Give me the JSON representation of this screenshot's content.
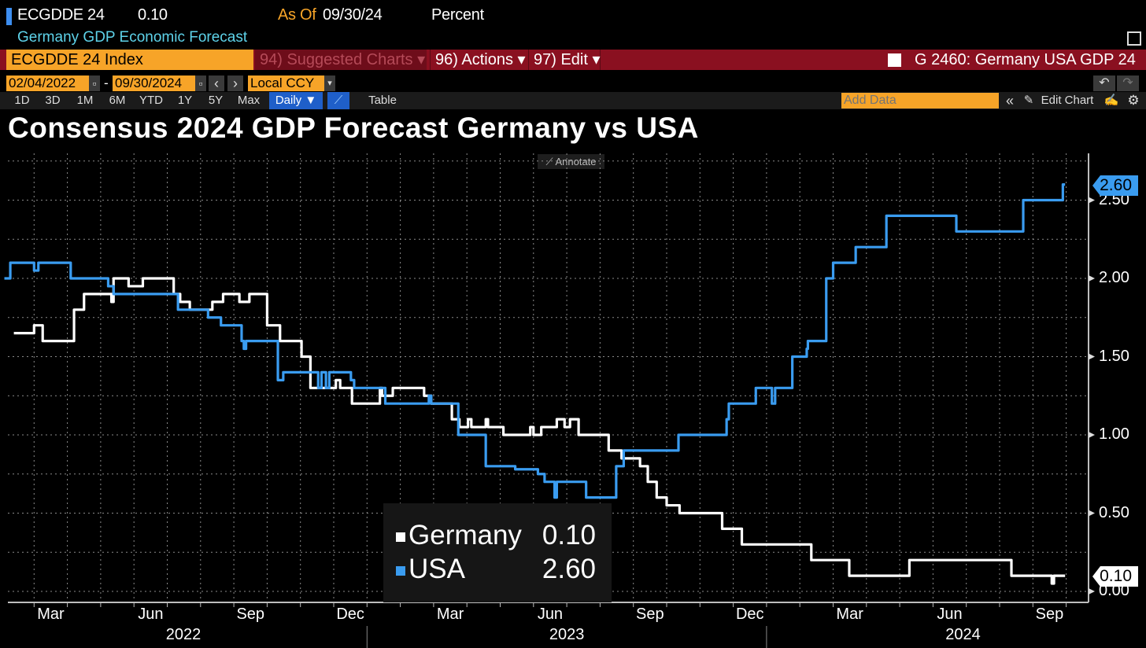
{
  "header": {
    "ticker": "ECGDDE 24",
    "value": "0.10",
    "as_of_label": "As Of",
    "as_of_date": "09/30/24",
    "units": "Percent",
    "description": "Germany GDP Economic Forecast"
  },
  "security_bar": {
    "security_input": "ECGDDE 24 Index",
    "suggested_charts": "94) Suggested Charts ▾",
    "actions": "96) Actions ▾",
    "edit": "97) Edit ▾",
    "chart_name": "G 2460: Germany USA GDP 24"
  },
  "date_bar": {
    "start_date": "02/04/2022",
    "separator": "-",
    "end_date": "09/30/2024",
    "currency": "Local CCY",
    "prev": "‹",
    "next": "›",
    "dropdown": "▾",
    "undo": "↶",
    "redo": "↷"
  },
  "toolbar": {
    "ranges": [
      "1D",
      "3D",
      "1M",
      "6M",
      "YTD",
      "1Y",
      "5Y",
      "Max"
    ],
    "frequency": "Daily ▼",
    "table": "Table",
    "add_data_placeholder": "Add Data",
    "collapse": "«",
    "edit_chart": "Edit Chart"
  },
  "annotate_label": "Annotate",
  "colors": {
    "accent_orange": "#f7a428",
    "bar_red": "#8a1020",
    "usa": "#3a9cf0",
    "germany": "#ffffff",
    "active_blue": "#1f5fc9"
  },
  "chart_data": {
    "type": "line",
    "title": "Consensus 2024 GDP Forecast Germany vs USA",
    "xlabel": "",
    "ylabel": "Percent",
    "xlim": [
      "2022-02-04",
      "2024-09-30"
    ],
    "ylim": [
      -0.07,
      2.8
    ],
    "grid": true,
    "legend": "bottom-center",
    "y_ticks": [
      "2.50",
      "2.00",
      "1.50",
      "1.00",
      "0.50",
      "0.00"
    ],
    "x_month_labels": [
      {
        "label": "Mar",
        "date": "2022-03-01"
      },
      {
        "label": "Jun",
        "date": "2022-06-01"
      },
      {
        "label": "Sep",
        "date": "2022-09-01"
      },
      {
        "label": "Dec",
        "date": "2022-12-01"
      },
      {
        "label": "Mar",
        "date": "2023-03-01"
      },
      {
        "label": "Jun",
        "date": "2023-06-01"
      },
      {
        "label": "Sep",
        "date": "2023-09-01"
      },
      {
        "label": "Dec",
        "date": "2023-12-01"
      },
      {
        "label": "Mar",
        "date": "2024-03-01"
      },
      {
        "label": "Jun",
        "date": "2024-06-01"
      },
      {
        "label": "Sep",
        "date": "2024-09-01"
      }
    ],
    "x_year_labels": [
      {
        "label": "2022",
        "date": "2022-07-16"
      },
      {
        "label": "2023",
        "date": "2023-07-01"
      },
      {
        "label": "2024",
        "date": "2024-06-28"
      }
    ],
    "series": [
      {
        "name": "Germany",
        "last": "0.10",
        "color": "#ffffff",
        "points": [
          [
            "2022-02-12",
            1.65
          ],
          [
            "2022-03-01",
            1.7
          ],
          [
            "2022-03-09",
            1.6
          ],
          [
            "2022-04-07",
            1.8
          ],
          [
            "2022-04-16",
            1.9
          ],
          [
            "2022-05-11",
            1.85
          ],
          [
            "2022-05-13",
            2.0
          ],
          [
            "2022-05-27",
            1.95
          ],
          [
            "2022-06-09",
            2.0
          ],
          [
            "2022-07-07",
            1.9
          ],
          [
            "2022-07-13",
            1.85
          ],
          [
            "2022-07-22",
            1.8
          ],
          [
            "2022-08-12",
            1.85
          ],
          [
            "2022-08-22",
            1.9
          ],
          [
            "2022-09-06",
            1.85
          ],
          [
            "2022-09-15",
            1.9
          ],
          [
            "2022-10-01",
            1.7
          ],
          [
            "2022-10-13",
            1.6
          ],
          [
            "2022-11-02",
            1.5
          ],
          [
            "2022-11-10",
            1.3
          ],
          [
            "2022-12-03",
            1.35
          ],
          [
            "2022-12-07",
            1.3
          ],
          [
            "2022-12-18",
            1.2
          ],
          [
            "2023-01-13",
            1.3
          ],
          [
            "2023-01-15",
            1.25
          ],
          [
            "2023-01-25",
            1.3
          ],
          [
            "2023-02-21",
            1.25
          ],
          [
            "2023-02-27",
            1.2
          ],
          [
            "2023-03-18",
            1.1
          ],
          [
            "2023-03-25",
            1.05
          ],
          [
            "2023-04-02",
            1.1
          ],
          [
            "2023-04-05",
            1.05
          ],
          [
            "2023-04-18",
            1.1
          ],
          [
            "2023-04-20",
            1.05
          ],
          [
            "2023-05-04",
            1.0
          ],
          [
            "2023-05-29",
            1.05
          ],
          [
            "2023-06-01",
            1.0
          ],
          [
            "2023-06-08",
            1.05
          ],
          [
            "2023-06-22",
            1.1
          ],
          [
            "2023-06-29",
            1.05
          ],
          [
            "2023-07-04",
            1.1
          ],
          [
            "2023-07-12",
            1.0
          ],
          [
            "2023-08-09",
            0.9
          ],
          [
            "2023-08-21",
            0.85
          ],
          [
            "2023-09-07",
            0.8
          ],
          [
            "2023-09-14",
            0.7
          ],
          [
            "2023-09-22",
            0.6
          ],
          [
            "2023-10-01",
            0.55
          ],
          [
            "2023-10-13",
            0.5
          ],
          [
            "2023-11-21",
            0.4
          ],
          [
            "2023-12-09",
            0.3
          ],
          [
            "2024-02-11",
            0.2
          ],
          [
            "2024-03-16",
            0.1
          ],
          [
            "2024-05-10",
            0.2
          ],
          [
            "2024-08-12",
            0.1
          ],
          [
            "2024-09-18",
            0.05
          ],
          [
            "2024-09-20",
            0.1
          ]
        ]
      },
      {
        "name": "USA",
        "last": "2.60",
        "color": "#3a9cf0",
        "points": [
          [
            "2022-02-04",
            2.0
          ],
          [
            "2022-02-09",
            2.1
          ],
          [
            "2022-03-01",
            2.05
          ],
          [
            "2022-03-05",
            2.1
          ],
          [
            "2022-04-04",
            2.0
          ],
          [
            "2022-05-08",
            1.95
          ],
          [
            "2022-05-13",
            1.9
          ],
          [
            "2022-07-11",
            1.8
          ],
          [
            "2022-08-08",
            1.75
          ],
          [
            "2022-08-20",
            1.7
          ],
          [
            "2022-09-08",
            1.6
          ],
          [
            "2022-09-10",
            1.55
          ],
          [
            "2022-09-12",
            1.6
          ],
          [
            "2022-10-11",
            1.35
          ],
          [
            "2022-10-16",
            1.4
          ],
          [
            "2022-11-17",
            1.3
          ],
          [
            "2022-11-20",
            1.4
          ],
          [
            "2022-11-24",
            1.3
          ],
          [
            "2022-11-27",
            1.4
          ],
          [
            "2022-12-17",
            1.35
          ],
          [
            "2022-12-20",
            1.3
          ],
          [
            "2023-01-18",
            1.2
          ],
          [
            "2023-02-25",
            1.25
          ],
          [
            "2023-02-27",
            1.2
          ],
          [
            "2023-03-24",
            1.0
          ],
          [
            "2023-04-18",
            0.8
          ],
          [
            "2023-05-15",
            0.78
          ],
          [
            "2023-06-05",
            0.75
          ],
          [
            "2023-06-11",
            0.7
          ],
          [
            "2023-06-20",
            0.6
          ],
          [
            "2023-06-22",
            0.7
          ],
          [
            "2023-07-19",
            0.6
          ],
          [
            "2023-08-16",
            0.8
          ],
          [
            "2023-08-23",
            0.9
          ],
          [
            "2023-10-12",
            1.0
          ],
          [
            "2023-11-25",
            1.1
          ],
          [
            "2023-11-27",
            1.2
          ],
          [
            "2023-12-22",
            1.3
          ],
          [
            "2024-01-06",
            1.2
          ],
          [
            "2024-01-09",
            1.3
          ],
          [
            "2024-01-25",
            1.5
          ],
          [
            "2024-02-07",
            1.55
          ],
          [
            "2024-02-08",
            1.6
          ],
          [
            "2024-02-24",
            2.0
          ],
          [
            "2024-03-01",
            2.1
          ],
          [
            "2024-03-22",
            2.2
          ],
          [
            "2024-04-19",
            2.4
          ],
          [
            "2024-06-22",
            2.3
          ],
          [
            "2024-08-23",
            2.5
          ],
          [
            "2024-09-28",
            2.6
          ]
        ]
      }
    ]
  }
}
